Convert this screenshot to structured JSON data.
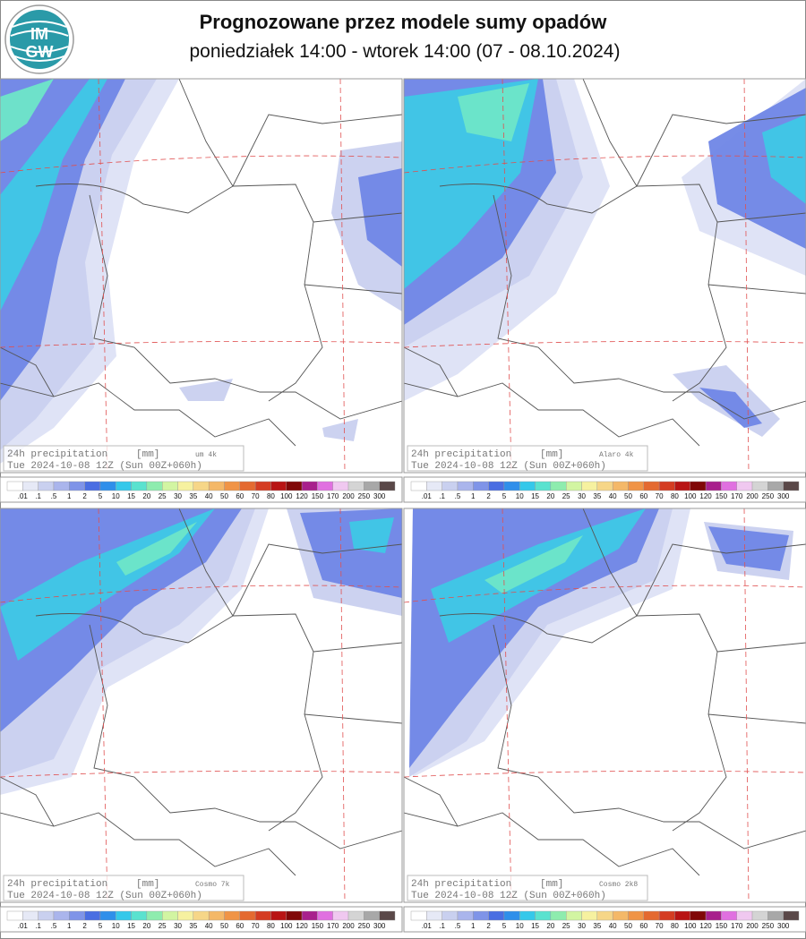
{
  "header": {
    "logo": [
      "IM",
      "GW"
    ],
    "title": "Prognozowane przez modele sumy opadów",
    "subtitle": "poniedziałek 14:00 - wtorek 14:00 (07 - 08.10.2024)"
  },
  "colorbar": {
    "labels": [
      ".01",
      ".1",
      ".5",
      "1",
      "2",
      "5",
      "10",
      "15",
      "20",
      "25",
      "30",
      "35",
      "40",
      "50",
      "60",
      "70",
      "80",
      "100",
      "120",
      "150",
      "170",
      "200",
      "250",
      "300"
    ],
    "colors": [
      "#ffffff",
      "#e6e9f6",
      "#c9d0ef",
      "#aab5ec",
      "#7f94e8",
      "#4a6ee2",
      "#2f8fea",
      "#35c8ea",
      "#5ae2cf",
      "#8eecae",
      "#d2f5a2",
      "#f6f1a0",
      "#f6d688",
      "#f4b868",
      "#f09446",
      "#e46a30",
      "#d43c22",
      "#b81414",
      "#800808",
      "#a8208c",
      "#e070e0",
      "#f0c8f0",
      "#d4d4d4",
      "#a8a8a8",
      "#5a4848"
    ]
  },
  "panels": [
    {
      "label": "24h precipitation",
      "unit": "[mm]",
      "model": "um 4k",
      "valid": "Tue 2024-10-08 12Z (Sun 00Z+060h)"
    },
    {
      "label": "24h precipitation",
      "unit": "[mm]",
      "model": "Alaro 4k",
      "valid": "Tue 2024-10-08 12Z (Sun 00Z+060h)"
    },
    {
      "label": "24h precipitation",
      "unit": "[mm]",
      "model": "Cosmo 7k",
      "valid": "Tue 2024-10-08 12Z (Sun 00Z+060h)"
    },
    {
      "label": "24h precipitation",
      "unit": "[mm]",
      "model": "Cosmo 2k8",
      "valid": "Tue 2024-10-08 12Z (Sun 00Z+060h)"
    }
  ]
}
